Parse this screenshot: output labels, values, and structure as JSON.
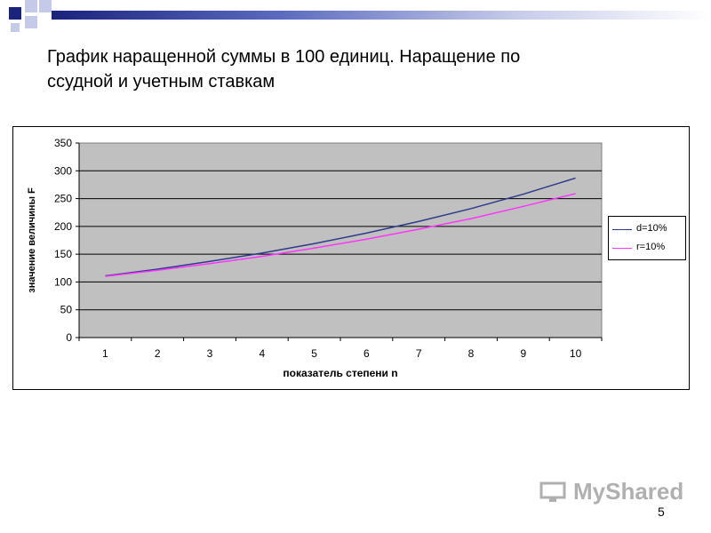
{
  "slide": {
    "title": "График наращенной суммы в 100 единиц. Наращение по\nссудной и учетным ставкам",
    "page_number": "5",
    "watermark": "MyShared"
  },
  "colors": {
    "plot_background": "#c0c0c0",
    "series_d": "#2e3a8c",
    "series_r": "#ff33ff",
    "topbar": "#1a237e"
  },
  "chart_data": {
    "type": "line",
    "title": "",
    "xlabel": "показатель степени n",
    "ylabel": "значение величины F",
    "categories": [
      "1",
      "2",
      "3",
      "4",
      "5",
      "6",
      "7",
      "8",
      "9",
      "10"
    ],
    "ylim": [
      0,
      350
    ],
    "yticks": [
      "0",
      "50",
      "100",
      "150",
      "200",
      "250",
      "300",
      "350"
    ],
    "grid": true,
    "legend": "right",
    "series": [
      {
        "name": "d=10%",
        "color": "#2e3a8c",
        "values": [
          111,
          123,
          137,
          152,
          169,
          188,
          209,
          232,
          258,
          287
        ]
      },
      {
        "name": "r=10%",
        "color": "#ff33ff",
        "values": [
          110,
          121,
          133,
          146,
          161,
          177,
          195,
          214,
          236,
          259
        ]
      }
    ]
  }
}
